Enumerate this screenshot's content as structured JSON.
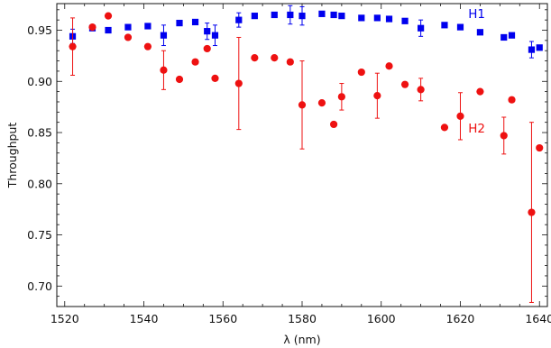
{
  "chart_data": {
    "type": "scatter",
    "xlabel": "λ (nm)",
    "ylabel": "Throughput",
    "xlim": [
      1518,
      1642
    ],
    "ylim": [
      0.68,
      0.976
    ],
    "xticks": [
      1520,
      1540,
      1560,
      1580,
      1600,
      1620,
      1640
    ],
    "yticks": [
      0.7,
      0.75,
      0.8,
      0.85,
      0.9,
      0.95
    ],
    "grid": false,
    "series": [
      {
        "name": "H1",
        "color": "#0000ee",
        "marker": "square",
        "points": [
          {
            "x": 1522,
            "y": 0.944,
            "err": 0.007
          },
          {
            "x": 1527,
            "y": 0.952,
            "err": null
          },
          {
            "x": 1531,
            "y": 0.95,
            "err": null
          },
          {
            "x": 1536,
            "y": 0.953,
            "err": null
          },
          {
            "x": 1541,
            "y": 0.954,
            "err": null
          },
          {
            "x": 1545,
            "y": 0.945,
            "err": 0.01
          },
          {
            "x": 1549,
            "y": 0.957,
            "err": null
          },
          {
            "x": 1553,
            "y": 0.958,
            "err": null
          },
          {
            "x": 1556,
            "y": 0.949,
            "err": 0.008
          },
          {
            "x": 1558,
            "y": 0.945,
            "err": 0.01
          },
          {
            "x": 1564,
            "y": 0.96,
            "err": 0.007
          },
          {
            "x": 1568,
            "y": 0.964,
            "err": null
          },
          {
            "x": 1573,
            "y": 0.965,
            "err": null
          },
          {
            "x": 1577,
            "y": 0.965,
            "err": 0.009
          },
          {
            "x": 1580,
            "y": 0.964,
            "err": 0.009
          },
          {
            "x": 1585,
            "y": 0.966,
            "err": null
          },
          {
            "x": 1588,
            "y": 0.965,
            "err": null
          },
          {
            "x": 1590,
            "y": 0.964,
            "err": null
          },
          {
            "x": 1595,
            "y": 0.962,
            "err": null
          },
          {
            "x": 1599,
            "y": 0.962,
            "err": null
          },
          {
            "x": 1602,
            "y": 0.961,
            "err": null
          },
          {
            "x": 1606,
            "y": 0.959,
            "err": null
          },
          {
            "x": 1610,
            "y": 0.952,
            "err": 0.008
          },
          {
            "x": 1616,
            "y": 0.955,
            "err": null
          },
          {
            "x": 1620,
            "y": 0.953,
            "err": null
          },
          {
            "x": 1625,
            "y": 0.948,
            "err": null
          },
          {
            "x": 1631,
            "y": 0.943,
            "err": null
          },
          {
            "x": 1633,
            "y": 0.945,
            "err": null
          },
          {
            "x": 1638,
            "y": 0.931,
            "err": 0.008
          },
          {
            "x": 1640,
            "y": 0.933,
            "err": null
          }
        ]
      },
      {
        "name": "H2",
        "color": "#ee1111",
        "marker": "circle",
        "points": [
          {
            "x": 1522,
            "y": 0.934,
            "err": 0.028
          },
          {
            "x": 1527,
            "y": 0.953,
            "err": null
          },
          {
            "x": 1531,
            "y": 0.964,
            "err": null
          },
          {
            "x": 1536,
            "y": 0.943,
            "err": null
          },
          {
            "x": 1541,
            "y": 0.934,
            "err": null
          },
          {
            "x": 1545,
            "y": 0.911,
            "err": 0.019
          },
          {
            "x": 1549,
            "y": 0.902,
            "err": null
          },
          {
            "x": 1553,
            "y": 0.919,
            "err": null
          },
          {
            "x": 1556,
            "y": 0.932,
            "err": null
          },
          {
            "x": 1558,
            "y": 0.903,
            "err": null
          },
          {
            "x": 1564,
            "y": 0.898,
            "err": 0.045
          },
          {
            "x": 1568,
            "y": 0.923,
            "err": null
          },
          {
            "x": 1573,
            "y": 0.923,
            "err": null
          },
          {
            "x": 1577,
            "y": 0.919,
            "err": null
          },
          {
            "x": 1580,
            "y": 0.877,
            "err": 0.043
          },
          {
            "x": 1585,
            "y": 0.879,
            "err": null
          },
          {
            "x": 1588,
            "y": 0.858,
            "err": null
          },
          {
            "x": 1590,
            "y": 0.885,
            "err": 0.013
          },
          {
            "x": 1595,
            "y": 0.909,
            "err": null
          },
          {
            "x": 1599,
            "y": 0.886,
            "err": 0.022
          },
          {
            "x": 1602,
            "y": 0.915,
            "err": null
          },
          {
            "x": 1606,
            "y": 0.897,
            "err": null
          },
          {
            "x": 1610,
            "y": 0.892,
            "err": 0.011
          },
          {
            "x": 1616,
            "y": 0.855,
            "err": null
          },
          {
            "x": 1620,
            "y": 0.866,
            "err": 0.023
          },
          {
            "x": 1625,
            "y": 0.89,
            "err": null
          },
          {
            "x": 1631,
            "y": 0.847,
            "err": 0.018
          },
          {
            "x": 1633,
            "y": 0.882,
            "err": null
          },
          {
            "x": 1638,
            "y": 0.772,
            "err": 0.088
          },
          {
            "x": 1640,
            "y": 0.835,
            "err": null
          }
        ]
      }
    ],
    "annotations": [
      {
        "text": "H1",
        "x": 1622,
        "y": 0.962,
        "color": "#0000ee"
      },
      {
        "text": "H2",
        "x": 1622,
        "y": 0.85,
        "color": "#ee1111"
      }
    ]
  }
}
